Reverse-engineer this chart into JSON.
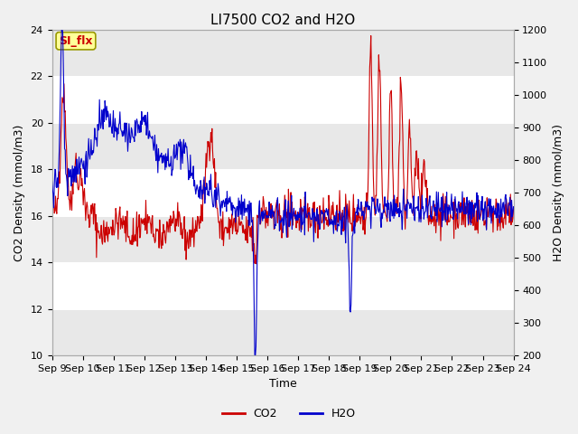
{
  "title": "LI7500 CO2 and H2O",
  "xlabel": "Time",
  "ylabel_left": "CO2 Density (mmol/m3)",
  "ylabel_right": "H2O Density (mmol/m3)",
  "ylim_left": [
    10,
    24
  ],
  "ylim_right": [
    200,
    1200
  ],
  "yticks_left": [
    10,
    12,
    14,
    16,
    18,
    20,
    22,
    24
  ],
  "yticks_right": [
    200,
    300,
    400,
    500,
    600,
    700,
    800,
    900,
    1000,
    1100,
    1200
  ],
  "xtick_labels": [
    "Sep 9",
    "Sep 10",
    "Sep 11",
    "Sep 12",
    "Sep 13",
    "Sep 14",
    "Sep 15",
    "Sep 16",
    "Sep 17",
    "Sep 18",
    "Sep 19",
    "Sep 20",
    "Sep 21",
    "Sep 22",
    "Sep 23",
    "Sep 24"
  ],
  "co2_color": "#cc0000",
  "h2o_color": "#0000cc",
  "figure_facecolor": "#f0f0f0",
  "plot_facecolor": "#ffffff",
  "band_color_dark": "#e8e8e8",
  "annotation_text": "SI_flx",
  "annotation_facecolor": "#ffff99",
  "annotation_edgecolor": "#999900",
  "annotation_textcolor": "#cc0000",
  "title_fontsize": 11,
  "label_fontsize": 9,
  "tick_fontsize": 8,
  "legend_fontsize": 9,
  "linewidth": 0.8
}
